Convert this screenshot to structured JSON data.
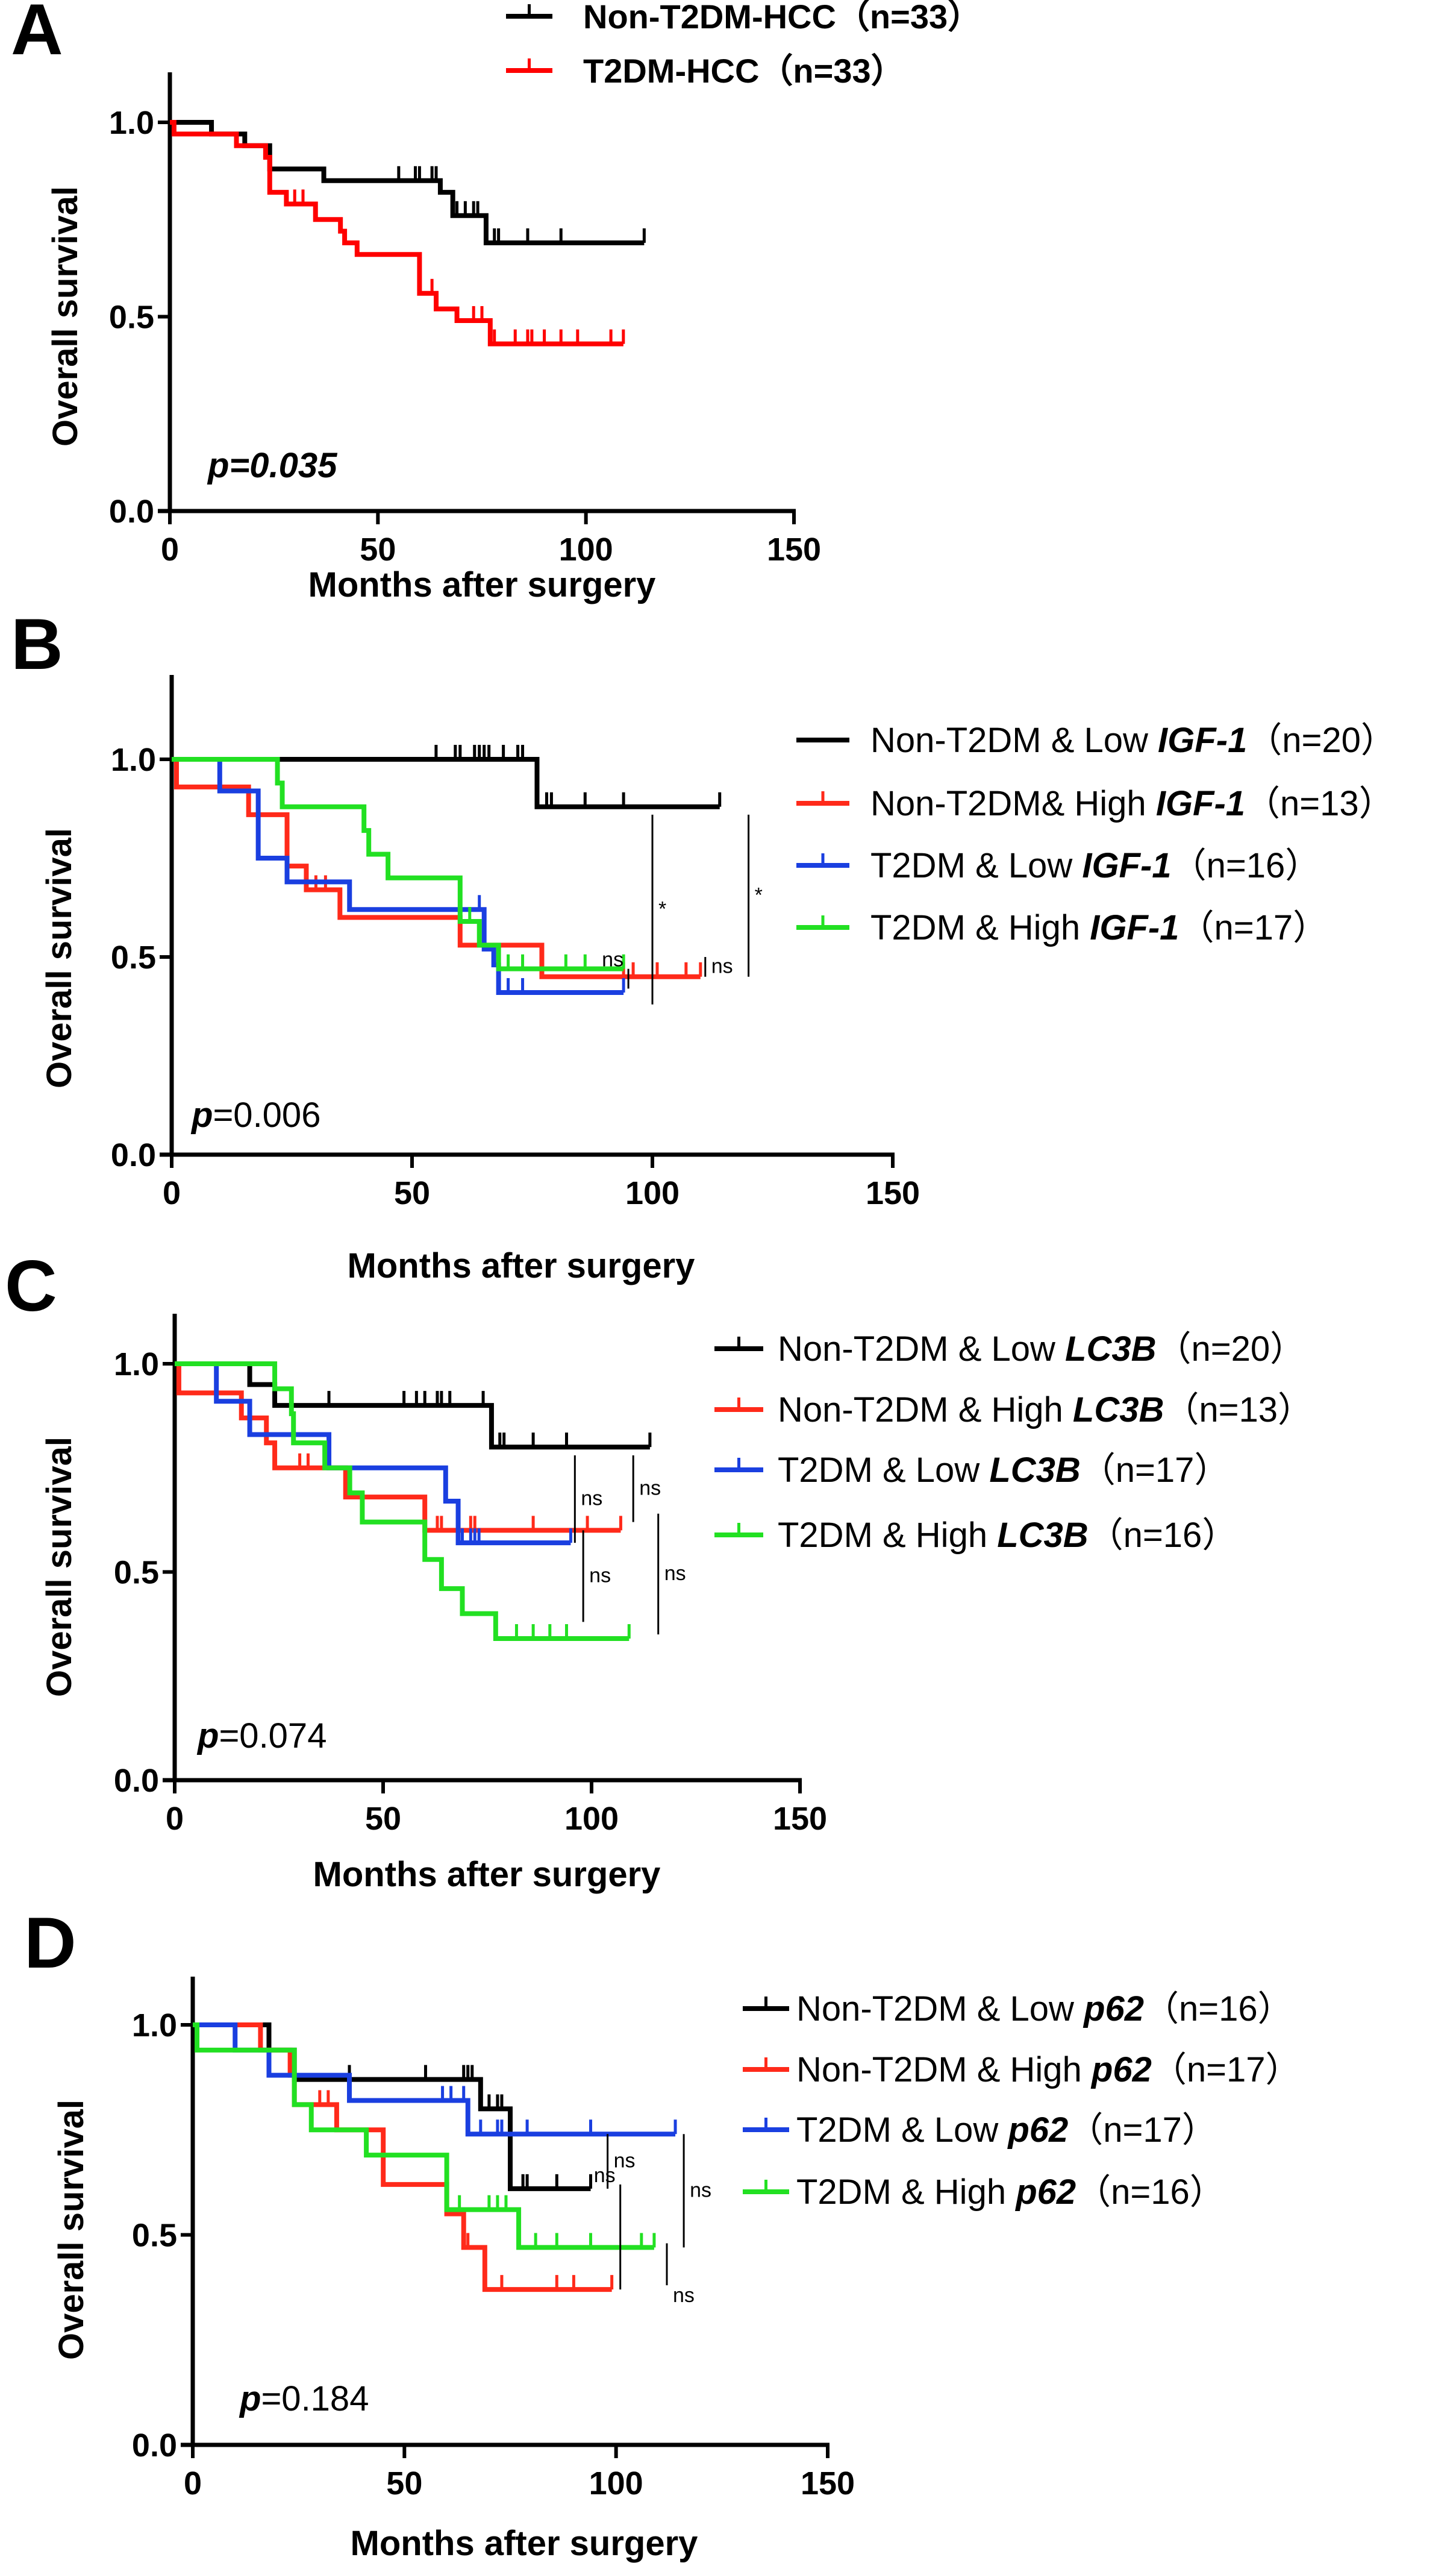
{
  "figure": {
    "panels": [
      "A",
      "B",
      "C",
      "D"
    ]
  },
  "chart_data": [
    {
      "panel": "A",
      "type": "line",
      "subtype": "kaplan-meier",
      "xlabel": "Months after surgery",
      "ylabel": "Overall survival",
      "xlim": [
        0,
        150
      ],
      "ylim": [
        0,
        1.0
      ],
      "xticks": [
        "0",
        "50",
        "100",
        "150"
      ],
      "yticks": [
        "0.0",
        "0.5",
        "1.0"
      ],
      "p_label": "p",
      "p_value": "=0.035",
      "p_italic_all": true,
      "legend_position": "top",
      "series": [
        {
          "name": "Non-T2DM-HCC",
          "n_label": "（n=33）",
          "gene": "",
          "color": "#000000",
          "steps": [
            [
              0,
              1.0
            ],
            [
              10,
              0.97
            ],
            [
              18,
              0.94
            ],
            [
              24,
              0.88
            ],
            [
              37,
              0.85
            ],
            [
              65,
              0.82
            ],
            [
              68,
              0.76
            ],
            [
              76,
              0.69
            ]
          ],
          "end": 114,
          "censors": [
            55,
            59,
            60,
            63,
            64,
            69,
            71,
            73,
            74,
            78,
            79,
            86,
            94,
            114
          ]
        },
        {
          "name": "T2DM-HCC",
          "n_label": "（n=33）",
          "gene": "",
          "color": "#ff0000",
          "steps": [
            [
              0,
              1.0
            ],
            [
              1,
              0.97
            ],
            [
              16,
              0.94
            ],
            [
              23,
              0.91
            ],
            [
              24,
              0.82
            ],
            [
              28,
              0.79
            ],
            [
              35,
              0.75
            ],
            [
              41,
              0.72
            ],
            [
              42,
              0.69
            ],
            [
              45,
              0.66
            ],
            [
              60,
              0.56
            ],
            [
              64,
              0.52
            ],
            [
              65,
              0.52
            ],
            [
              69,
              0.49
            ],
            [
              77,
              0.43
            ]
          ],
          "end": 109,
          "censors": [
            30,
            32,
            63,
            73,
            75,
            78,
            83,
            86,
            87,
            90,
            94,
            98,
            106,
            109
          ]
        }
      ],
      "annotations": []
    },
    {
      "panel": "B",
      "type": "line",
      "subtype": "kaplan-meier",
      "xlabel": "Months after surgery",
      "ylabel": "Overall survival",
      "xlim": [
        0,
        150
      ],
      "ylim": [
        0,
        1.0
      ],
      "xticks": [
        "0",
        "50",
        "100",
        "150"
      ],
      "yticks": [
        "0.0",
        "0.5",
        "1.0"
      ],
      "p_label": "p",
      "p_value": "=0.006",
      "p_italic_all": false,
      "legend_position": "right",
      "series": [
        {
          "name": "Non-T2DM & Low ",
          "gene": "IGF-1",
          "n_label": "（n=20）",
          "color": "#000000",
          "steps": [
            [
              0,
              1.0
            ],
            [
              76,
              0.88
            ]
          ],
          "end": 114,
          "censors": [
            55,
            59,
            60,
            63,
            64,
            65,
            66,
            69,
            72,
            73,
            78,
            79,
            86,
            94,
            114
          ]
        },
        {
          "name": "Non-T2DM& High ",
          "gene": "IGF-1",
          "n_label": "（n=13）",
          "color": "#ff2a1a",
          "steps": [
            [
              0,
              1.0
            ],
            [
              1,
              0.93
            ],
            [
              16,
              0.86
            ],
            [
              24,
              0.73
            ],
            [
              28,
              0.67
            ],
            [
              35,
              0.6
            ],
            [
              60,
              0.53
            ],
            [
              77,
              0.45
            ]
          ],
          "end": 110,
          "censors": [
            30,
            32,
            94,
            96,
            101,
            107,
            110
          ]
        },
        {
          "name": "T2DM & Low ",
          "gene": "IGF-1",
          "n_label": "（n=16）",
          "color": "#1a3fe0",
          "steps": [
            [
              0,
              1.0
            ],
            [
              10,
              0.92
            ],
            [
              18,
              0.75
            ],
            [
              24,
              0.69
            ],
            [
              37,
              0.62
            ],
            [
              65,
              0.52
            ],
            [
              67,
              0.48
            ],
            [
              68,
              0.41
            ]
          ],
          "end": 94,
          "censors": [
            64,
            70,
            73,
            94
          ]
        },
        {
          "name": "T2DM & High ",
          "gene": "IGF-1",
          "n_label": "（n=17）",
          "color": "#22e022",
          "steps": [
            [
              0,
              1.0
            ],
            [
              22,
              0.94
            ],
            [
              23,
              0.88
            ],
            [
              40,
              0.82
            ],
            [
              41,
              0.76
            ],
            [
              45,
              0.7
            ],
            [
              60,
              0.59
            ],
            [
              64,
              0.53
            ],
            [
              68,
              0.47
            ]
          ],
          "end": 94,
          "censors": [
            62,
            70,
            73,
            82,
            86,
            94
          ]
        }
      ],
      "annotations": [
        {
          "label": "ns",
          "x": 95,
          "y1": 0.42,
          "y2": 0.47,
          "label_side": "left"
        },
        {
          "label": "*",
          "x": 100,
          "y1": 0.38,
          "y2": 0.86,
          "label_side": "right"
        },
        {
          "label": "ns",
          "x": 111,
          "y1": 0.45,
          "y2": 0.5,
          "label_side": "right"
        },
        {
          "label": "*",
          "x": 120,
          "y1": 0.45,
          "y2": 0.86,
          "label_side": "right"
        }
      ]
    },
    {
      "panel": "C",
      "type": "line",
      "subtype": "kaplan-meier",
      "xlabel": "Months after surgery",
      "ylabel": "Overall survival",
      "xlim": [
        0,
        150
      ],
      "ylim": [
        0,
        1.0
      ],
      "xticks": [
        "0",
        "50",
        "100",
        "150"
      ],
      "yticks": [
        "0.0",
        "0.5",
        "1.0"
      ],
      "p_label": "p",
      "p_value": "=0.074",
      "p_italic_all": false,
      "legend_position": "right",
      "series": [
        {
          "name": "Non-T2DM & Low ",
          "gene": "LC3B",
          "n_label": "（n=20）",
          "color": "#000000",
          "steps": [
            [
              0,
              1.0
            ],
            [
              18,
              0.95
            ],
            [
              24,
              0.9
            ],
            [
              76,
              0.8
            ]
          ],
          "end": 114,
          "censors": [
            37,
            55,
            58,
            60,
            63,
            64,
            66,
            74,
            78,
            79,
            86,
            94,
            114
          ]
        },
        {
          "name": "Non-T2DM & High ",
          "gene": "LC3B",
          "n_label": "（n=13）",
          "color": "#ff2a1a",
          "steps": [
            [
              0,
              1.0
            ],
            [
              1,
              0.93
            ],
            [
              16,
              0.87
            ],
            [
              22,
              0.81
            ],
            [
              24,
              0.75
            ],
            [
              41,
              0.68
            ],
            [
              60,
              0.6
            ]
          ],
          "end": 107,
          "censors": [
            30,
            32,
            63,
            64,
            71,
            72,
            86,
            99,
            107
          ]
        },
        {
          "name": "T2DM & Low ",
          "gene": "LC3B",
          "n_label": "（n=17）",
          "color": "#1a3fe0",
          "steps": [
            [
              0,
              1.0
            ],
            [
              10,
              0.91
            ],
            [
              18,
              0.83
            ],
            [
              37,
              0.75
            ],
            [
              65,
              0.67
            ],
            [
              68,
              0.57
            ]
          ],
          "end": 95,
          "censors": [
            68,
            69,
            71,
            72,
            73,
            95
          ]
        },
        {
          "name": "T2DM & High ",
          "gene": "LC3B",
          "n_label": "（n=16）",
          "color": "#22e022",
          "steps": [
            [
              0,
              1.0
            ],
            [
              24,
              0.94
            ],
            [
              28,
              0.88
            ],
            [
              28.5,
              0.81
            ],
            [
              36,
              0.75
            ],
            [
              42,
              0.69
            ],
            [
              45,
              0.62
            ],
            [
              60,
              0.53
            ],
            [
              64,
              0.46
            ],
            [
              69,
              0.4
            ],
            [
              77,
              0.34
            ]
          ],
          "end": 109,
          "censors": [
            82,
            86,
            90,
            94,
            109
          ]
        }
      ],
      "annotations": [
        {
          "label": "ns",
          "x": 96,
          "y1": 0.57,
          "y2": 0.78,
          "label_side": "right"
        },
        {
          "label": "ns",
          "x": 110,
          "y1": 0.62,
          "y2": 0.78,
          "label_side": "right"
        },
        {
          "label": "ns",
          "x": 98,
          "y1": 0.38,
          "y2": 0.6,
          "label_side": "right"
        },
        {
          "label": "ns",
          "x": 116,
          "y1": 0.35,
          "y2": 0.64,
          "label_side": "right"
        }
      ]
    },
    {
      "panel": "D",
      "type": "line",
      "subtype": "kaplan-meier",
      "xlabel": "Months after surgery",
      "ylabel": "Overall survival",
      "xlim": [
        0,
        150
      ],
      "ylim": [
        0,
        1.0
      ],
      "xticks": [
        "0",
        "50",
        "100",
        "150"
      ],
      "yticks": [
        "0.0",
        "0.5",
        "1.0"
      ],
      "p_label": "p",
      "p_value": "=0.184",
      "p_italic_all": false,
      "legend_position": "right",
      "series": [
        {
          "name": "Non-T2DM & Low ",
          "gene": "p62",
          "n_label": "（n=16）",
          "color": "#000000",
          "steps": [
            [
              0,
              1.0
            ],
            [
              18,
              0.94
            ],
            [
              24,
              0.87
            ],
            [
              68,
              0.8
            ],
            [
              75,
              0.61
            ]
          ],
          "end": 94,
          "censors": [
            37,
            55,
            64,
            65,
            66,
            70,
            72,
            73,
            78,
            79,
            86,
            94
          ]
        },
        {
          "name": "Non-T2DM & High ",
          "gene": "p62",
          "n_label": "（n=17）",
          "color": "#ff2a1a",
          "steps": [
            [
              0,
              1.0
            ],
            [
              16,
              0.94
            ],
            [
              23,
              0.88
            ],
            [
              24,
              0.81
            ],
            [
              34,
              0.75
            ],
            [
              45,
              0.62
            ],
            [
              60,
              0.55
            ],
            [
              64,
              0.47
            ],
            [
              69,
              0.37
            ]
          ],
          "end": 99,
          "censors": [
            30,
            32,
            65,
            73,
            86,
            90,
            99
          ]
        },
        {
          "name": "T2DM & Low ",
          "gene": "p62",
          "n_label": "（n=17）",
          "color": "#1a3fe0",
          "steps": [
            [
              0,
              1.0
            ],
            [
              10,
              0.94
            ],
            [
              18,
              0.88
            ],
            [
              37,
              0.82
            ],
            [
              65,
              0.74
            ]
          ],
          "end": 114,
          "censors": [
            59,
            61,
            64,
            68,
            72,
            73,
            79,
            94,
            114
          ]
        },
        {
          "name": "T2DM & High ",
          "gene": "p62",
          "n_label": "（n=16）",
          "color": "#22e022",
          "steps": [
            [
              0,
              1.0
            ],
            [
              1,
              0.94
            ],
            [
              24,
              0.81
            ],
            [
              28,
              0.75
            ],
            [
              41,
              0.69
            ],
            [
              60,
              0.56
            ],
            [
              77,
              0.47
            ]
          ],
          "end": 109,
          "censors": [
            63,
            70,
            72,
            74,
            81,
            86,
            94,
            106,
            109
          ]
        }
      ],
      "annotations": [
        {
          "label": "ns",
          "x": 98,
          "y1": 0.61,
          "y2": 0.74,
          "label_side": "right"
        },
        {
          "label": "ns",
          "x": 101,
          "y1": 0.37,
          "y2": 0.62,
          "label_side": "left"
        },
        {
          "label": "ns",
          "x": 116,
          "y1": 0.47,
          "y2": 0.74,
          "label_side": "right"
        },
        {
          "label": "ns",
          "x": 112,
          "y1": 0.38,
          "y2": 0.48,
          "label_side": "right-below"
        }
      ]
    }
  ]
}
